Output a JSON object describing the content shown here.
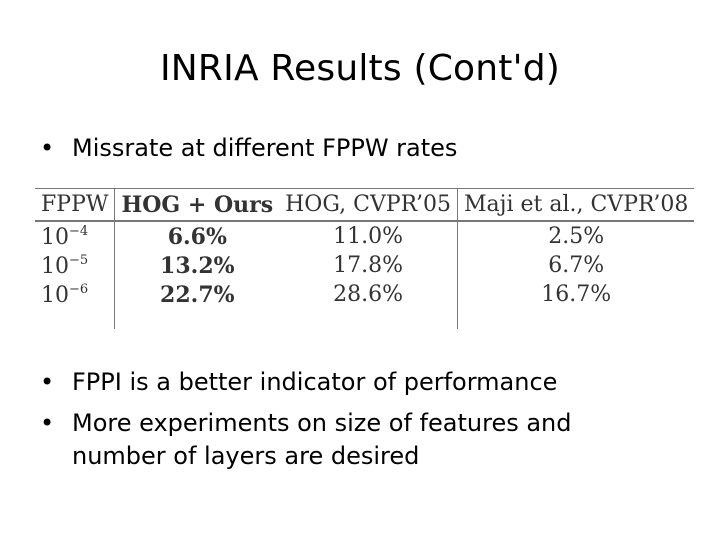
{
  "slide": {
    "title": "INRIA Results (Cont'd)",
    "bullets": [
      "Missrate at different FPPW rates",
      "FPPI is a better indicator of performance",
      "More experiments on size of features and",
      "number of layers are desired"
    ],
    "bullet_symbol": "•"
  },
  "table": {
    "headers": [
      "FPPW",
      "HOG + Ours",
      "HOG, CVPR’05",
      "Maji et al., CVPR’08"
    ],
    "rows": [
      {
        "fppw_base": "10",
        "fppw_exp": "−4",
        "ours": "6.6%",
        "hog": "11.0%",
        "maji": "2.5%"
      },
      {
        "fppw_base": "10",
        "fppw_exp": "−5",
        "ours": "13.2%",
        "hog": "17.8%",
        "maji": "6.7%"
      },
      {
        "fppw_base": "10",
        "fppw_exp": "−6",
        "ours": "22.7%",
        "hog": "28.6%",
        "maji": "16.7%"
      }
    ]
  }
}
